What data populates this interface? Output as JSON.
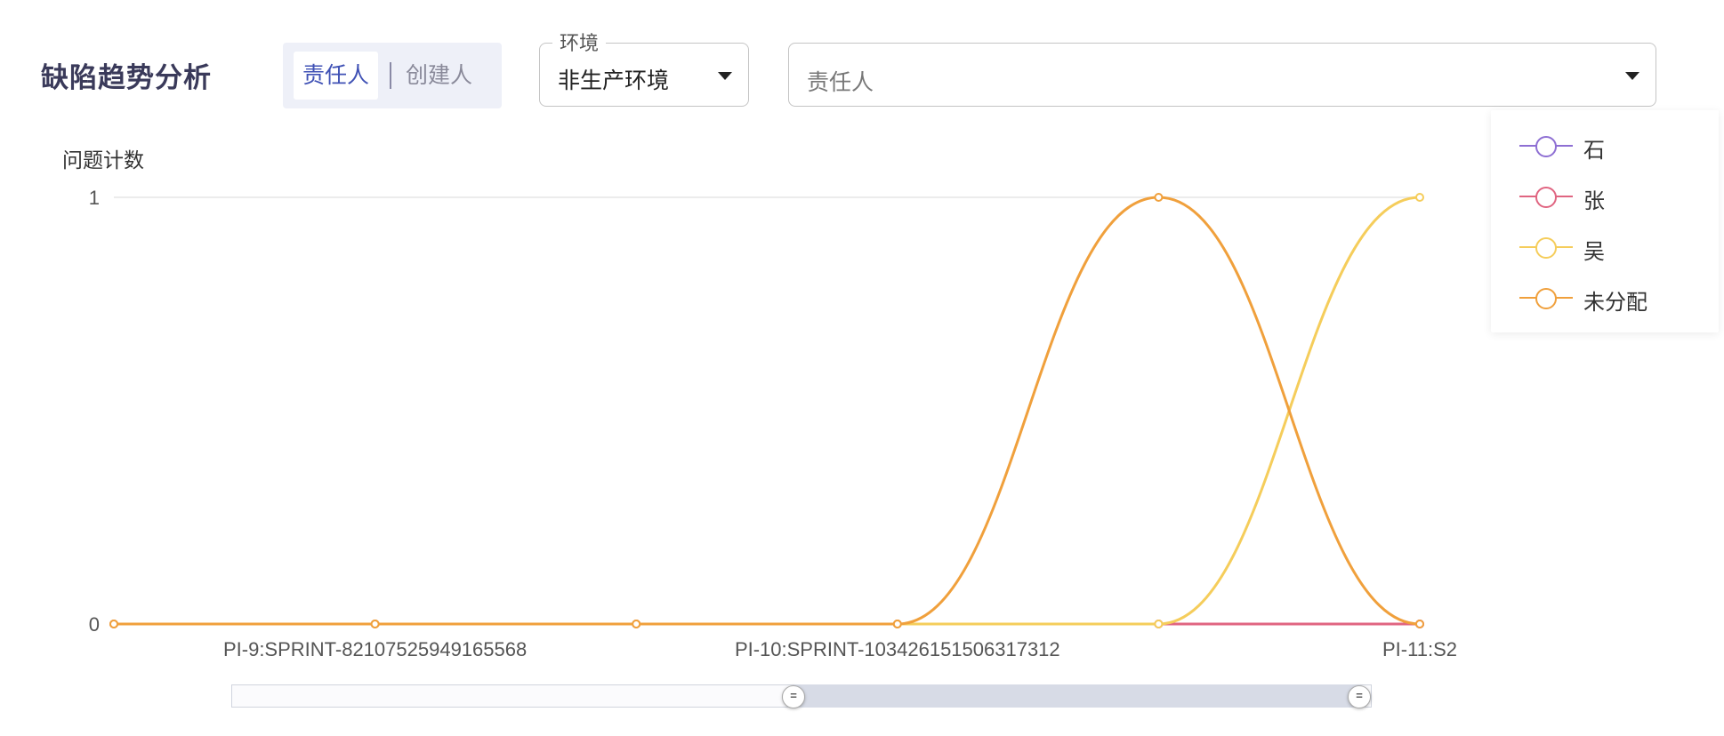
{
  "page": {
    "title": "缺陷趋势分析"
  },
  "toggle": {
    "options": [
      "责任人",
      "创建人"
    ],
    "active_index": 0
  },
  "filters": {
    "environment": {
      "label": "环境",
      "value": "非生产环境"
    },
    "owner": {
      "placeholder": "责任人"
    }
  },
  "slider": {
    "handle_glyph": "=",
    "range_start": 0.5,
    "range_end": 1.0
  },
  "chart_data": {
    "type": "line",
    "ylabel": "问题计数",
    "ylim": [
      0,
      1
    ],
    "yticks": [
      0,
      1
    ],
    "categories": [
      "PI-9:SPRINT-82107525949165568",
      "",
      "",
      "PI-10:SPRINT-103426151506317312",
      "",
      "PI-11:S2"
    ],
    "tick_labels_shown": [
      "PI-9:SPRINT-82107525949165568",
      "PI-10:SPRINT-103426151506317312",
      "PI-11:S2"
    ],
    "legend_position": "right",
    "series": [
      {
        "name": "石",
        "color": "#8e6fd3",
        "values": [
          0,
          0,
          0,
          0,
          0,
          0
        ]
      },
      {
        "name": "张",
        "color": "#e06581",
        "values": [
          0,
          0,
          0,
          0,
          0,
          0
        ]
      },
      {
        "name": "吴",
        "color": "#f5cd5b",
        "values": [
          0,
          0,
          0,
          0,
          0,
          1
        ]
      },
      {
        "name": "未分配",
        "color": "#f0a03c",
        "values": [
          0,
          0,
          0,
          0,
          1,
          0
        ]
      }
    ]
  }
}
